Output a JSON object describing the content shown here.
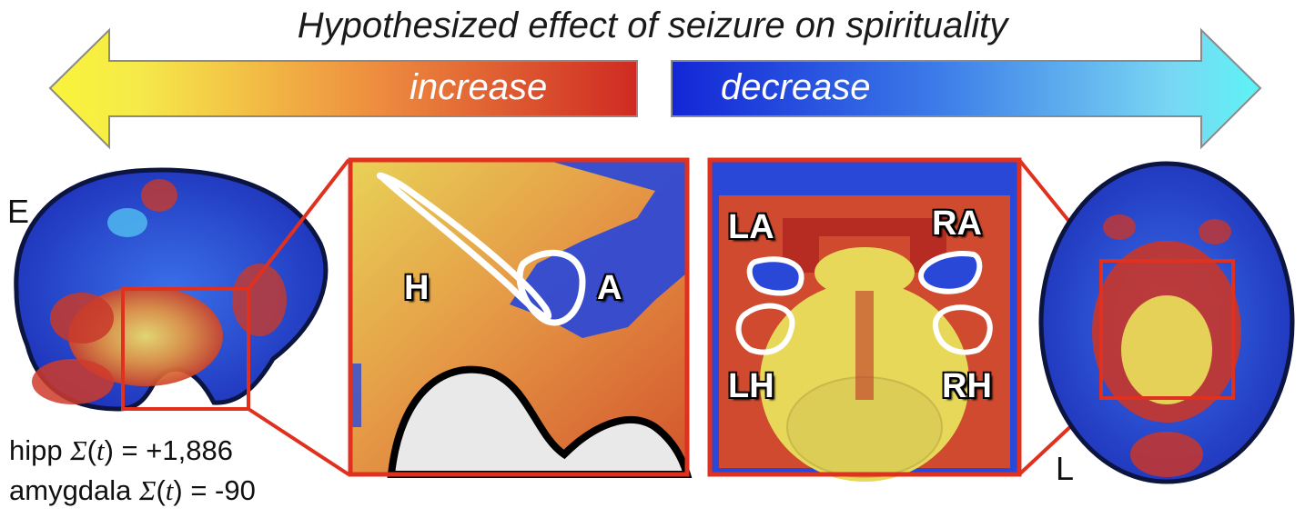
{
  "title": "Hypothesized effect of seizure on spirituality",
  "arrows": {
    "increase_label": "increase",
    "decrease_label": "decrease",
    "increase_colors": [
      "#f7f03a",
      "#ef8a3a",
      "#d22b22"
    ],
    "decrease_colors": [
      "#1a2fd6",
      "#3f7de9",
      "#5ef0f4"
    ]
  },
  "panels": {
    "sagittal_label": "E",
    "axial_label": "L"
  },
  "rois": {
    "hippocampus": "H",
    "amygdala": "A",
    "left_amygdala": "LA",
    "right_amygdala": "RA",
    "left_hippocampus": "LH",
    "right_hippocampus": "RH"
  },
  "stats": {
    "hipp_prefix": "hipp ",
    "hipp_value": "= +1,886",
    "amygdala_prefix": "amygdala ",
    "amygdala_value": "= -90",
    "sum_symbol": "Σ",
    "t_symbol": "t"
  },
  "colors": {
    "box_red": "#e0301e",
    "brain_blue": "#2440c8",
    "brain_red": "#d8402a",
    "brain_yellow": "#e8d25a"
  }
}
